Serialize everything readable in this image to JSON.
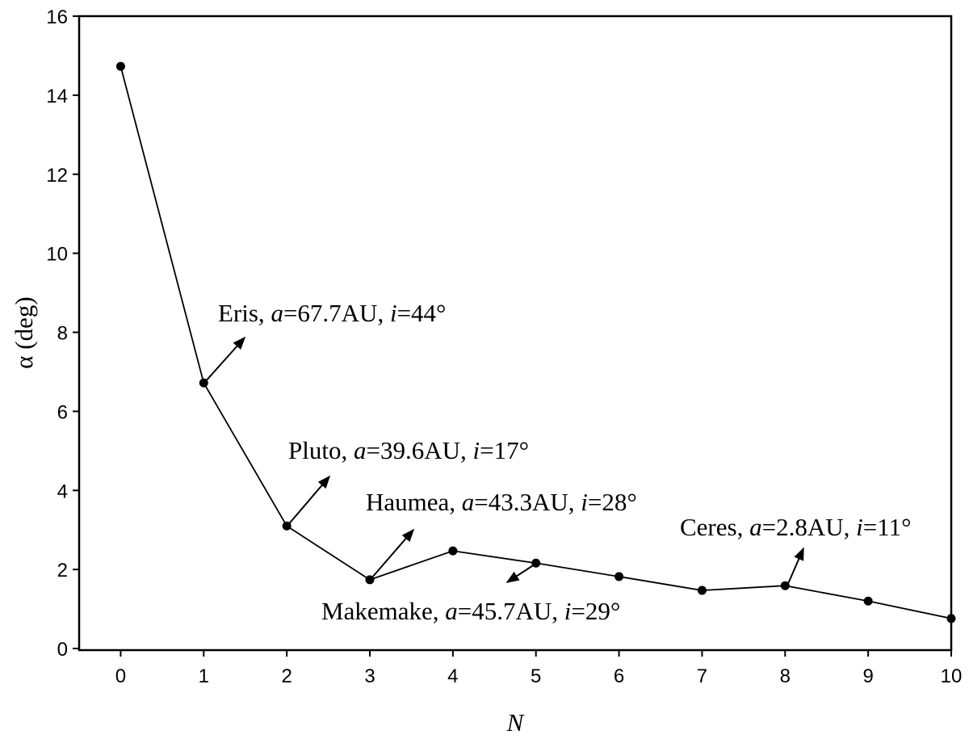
{
  "chart_data": {
    "type": "line",
    "xlabel": "N",
    "ylabel": "α (deg)",
    "x": [
      0,
      1,
      2,
      3,
      4,
      5,
      6,
      7,
      8,
      9,
      10
    ],
    "series": [
      {
        "color": "#000000",
        "values": [
          14.73,
          6.72,
          3.1,
          1.74,
          2.47,
          2.16,
          1.82,
          1.47,
          1.59,
          1.2,
          0.76
        ]
      }
    ],
    "xlim": [
      -0.5,
      10
    ],
    "ylim": [
      0,
      16
    ],
    "xticks": [
      0,
      1,
      2,
      3,
      4,
      5,
      6,
      7,
      8,
      9,
      10
    ],
    "yticks": [
      0,
      2,
      4,
      6,
      8,
      10,
      12,
      14,
      16
    ],
    "annotations": [
      {
        "parts": [
          "Eris, ",
          "a",
          "=67.7AU, ",
          "i",
          "=44°"
        ]
      },
      {
        "parts": [
          "Pluto, ",
          "a",
          "=39.6AU, ",
          "i",
          "=17°"
        ]
      },
      {
        "parts": [
          "Haumea, ",
          "a",
          "=43.3AU, ",
          "i",
          "=28°"
        ]
      },
      {
        "parts": [
          "Makemake, ",
          "a",
          "=45.7AU, ",
          "i",
          "=29°"
        ]
      },
      {
        "parts": [
          "Ceres, ",
          "a",
          "=2.8AU, ",
          "i",
          "=11°"
        ]
      }
    ]
  }
}
